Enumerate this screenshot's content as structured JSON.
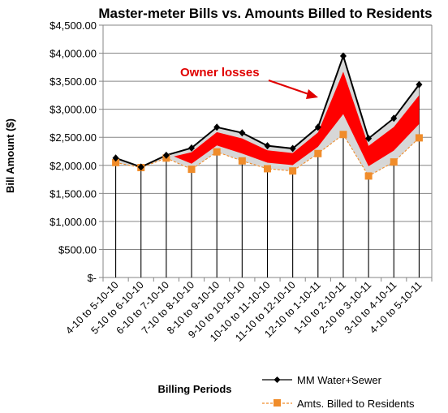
{
  "chart_data": {
    "type": "line",
    "title": "Master-meter Bills vs. Amounts Billed to Residents",
    "xlabel": "Billing Periods",
    "ylabel": "Bill Amount ($)",
    "ylim": [
      0,
      4500
    ],
    "ytick_labels": [
      "$-",
      "$500.00",
      "$1,000.00",
      "$1,500.00",
      "$2,000.00",
      "$2,500.00",
      "$3,000.00",
      "$3,500.00",
      "$4,000.00",
      "$4,500.00"
    ],
    "categories": [
      "4-10 to 5-10-10",
      "5-10 to 6-10-10",
      "6-10 to 7-10-10",
      "7-10 to 8-10-10",
      "8-10 to 9-10-10",
      "9-10 to 10-10-10",
      "10-10 to 11-10-10",
      "11-10 to 12-10-10",
      "12-10 to 1-10-11",
      "1-10 to 2-10-11",
      "2-10 to 3-10-11",
      "3-10 to 4-10-11",
      "4-10 to 5-10-11"
    ],
    "series": [
      {
        "name": "MM Water+Sewer",
        "color": "#000000",
        "marker": "diamond",
        "line": "solid",
        "values": [
          2130,
          1970,
          2180,
          2310,
          2680,
          2580,
          2350,
          2300,
          2680,
          3950,
          2480,
          2840,
          3440
        ]
      },
      {
        "name": "Amts. Billed to Residents",
        "color": "#f08c2a",
        "marker": "square",
        "line": "dashed",
        "values": [
          2050,
          1960,
          2130,
          1930,
          2240,
          2080,
          1940,
          1900,
          2210,
          2550,
          1810,
          2060,
          2490
        ]
      }
    ],
    "grid": "horizontal",
    "legend": "bottom-right",
    "annotation": {
      "text": "Owner losses",
      "color": "#e00000"
    }
  }
}
